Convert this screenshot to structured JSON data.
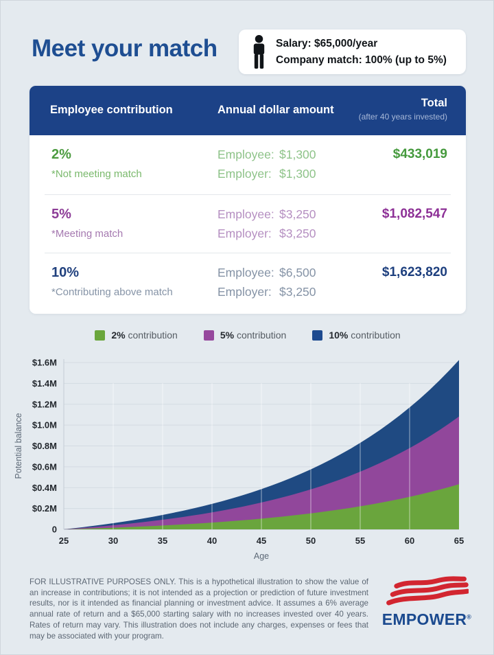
{
  "header": {
    "title": "Meet your match",
    "info_box": {
      "salary_line": "Salary: $65,000/year",
      "match_line": "Company match: 100% (up to 5%)"
    }
  },
  "table": {
    "columns": {
      "c1": "Employee contribution",
      "c2": "Annual dollar amount",
      "c3": "Total",
      "c3_sub": "(after 40 years invested)"
    },
    "rows": [
      {
        "pct": "2%",
        "note": "*Not meeting match",
        "employee_label": "Employee:",
        "employee_value": "$1,300",
        "employer_label": "Employer:",
        "employer_value": "$1,300",
        "total": "$433,019",
        "colors": {
          "strong": "#4c9b40",
          "note": "#7ab96c",
          "light": "#8ec389",
          "total": "#459a3d"
        }
      },
      {
        "pct": "5%",
        "note": "*Meeting match",
        "employee_label": "Employee:",
        "employee_value": "$3,250",
        "employer_label": "Employer:",
        "employer_value": "$3,250",
        "total": "$1,082,547",
        "colors": {
          "strong": "#8d3d97",
          "note": "#a579b0",
          "light": "#b58fc1",
          "total": "#8d3096"
        }
      },
      {
        "pct": "10%",
        "note": "*Contributing above match",
        "employee_label": "Employee:",
        "employee_value": "$6,500",
        "employer_label": "Employer:",
        "employer_value": "$3,250",
        "total": "$1,623,820",
        "colors": {
          "strong": "#21417e",
          "note": "#8593a6",
          "light": "#8593a6",
          "total": "#1d3f7e"
        }
      }
    ]
  },
  "legend": [
    {
      "pct": "2%",
      "rest": " contribution",
      "color": "#6aa63c"
    },
    {
      "pct": "5%",
      "rest": " contribution",
      "color": "#96489d"
    },
    {
      "pct": "10%",
      "rest": " contribution",
      "color": "#1d4a8f"
    }
  ],
  "chart_data": {
    "type": "area",
    "title": "",
    "xlabel": "Age",
    "ylabel": "Potential balance",
    "xlim": [
      25,
      65
    ],
    "ylim": [
      0,
      1600000
    ],
    "x_ticks": [
      25,
      30,
      35,
      40,
      45,
      50,
      55,
      60,
      65
    ],
    "y_ticks": [
      {
        "value": 1600000,
        "label": "$1.6M"
      },
      {
        "value": 1400000,
        "label": "$1.4M"
      },
      {
        "value": 1200000,
        "label": "$1.2M"
      },
      {
        "value": 1000000,
        "label": "$1.0M"
      },
      {
        "value": 800000,
        "label": "$0.8M"
      },
      {
        "value": 600000,
        "label": "$0.6M"
      },
      {
        "value": 400000,
        "label": "$0.4M"
      },
      {
        "value": 200000,
        "label": "$0.2M"
      },
      {
        "value": 0,
        "label": "0"
      }
    ],
    "grid": true,
    "legend_position": "top",
    "rate_of_return": 0.06,
    "years_invested": 40,
    "ages_sampled": [
      25,
      30,
      35,
      40,
      45,
      50,
      55,
      60,
      65
    ],
    "series": [
      {
        "name": "10% contribution",
        "color": "#1f4a82",
        "final": 1623820,
        "values": [
          0,
          59142,
          138302,
          244226,
          385965,
          575665,
          829514,
          1169219,
          1623820
        ]
      },
      {
        "name": "5% contribution",
        "color": "#91479b",
        "final": 1082547,
        "values": [
          0,
          39428,
          92201,
          162817,
          257310,
          383777,
          553013,
          779477,
          1082547
        ]
      },
      {
        "name": "2% contribution",
        "color": "#6aa53d",
        "final": 433019,
        "values": [
          0,
          15771,
          36881,
          65127,
          102924,
          153512,
          221204,
          311789,
          433019
        ]
      }
    ]
  },
  "footer": {
    "disclaimer": "FOR ILLUSTRATIVE PURPOSES ONLY. This is a hypothetical illustration to show the value of an increase in contributions; it is not intended as a projection or prediction of future investment results, nor is it intended as financial planning or investment advice. It assumes a 6% average annual rate of return and a $65,000 starting salary with no increases invested over 40 years. Rates of return may vary. This illustration does not include any charges, expenses or fees that may be associated with your program.",
    "brand": "EMPOWER",
    "reg_mark": "®"
  },
  "colors": {
    "background": "#e4eaef",
    "navy": "#1c4287",
    "title_blue": "#1e4e92",
    "green": "#6aa63c",
    "purple": "#96489d",
    "chart_blue": "#1f4a82",
    "logo_red": "#d22630"
  }
}
